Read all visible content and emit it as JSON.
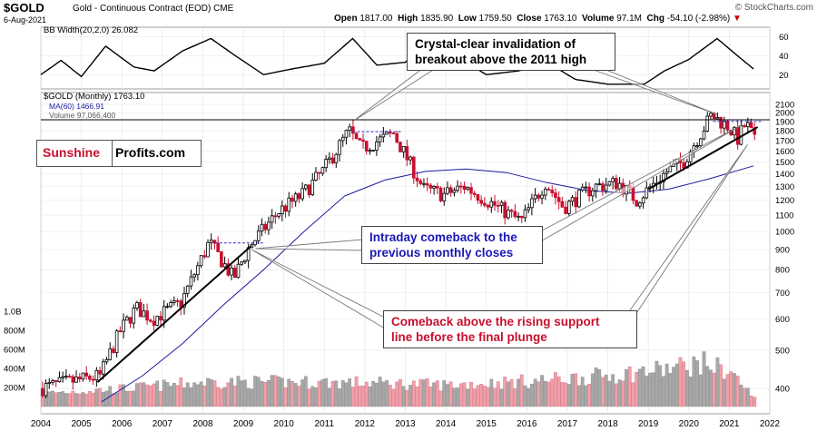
{
  "header": {
    "ticker": "$GOLD",
    "name": "Gold - Continuous Contract (EOD)",
    "exchange": "CME",
    "date": "6-Aug-2021",
    "open_label": "Open",
    "open": "1817.00",
    "high_label": "High",
    "high": "1835.90",
    "low_label": "Low",
    "low": "1759.50",
    "close_label": "Close",
    "close": "1763.10",
    "volume_label": "Volume",
    "volume": "97.1M",
    "chg_label": "Chg",
    "chg": "-54.10 (-2.98%)",
    "chg_arrow": "▼",
    "brand": "© StockCharts.com"
  },
  "panels": {
    "bbw_label": "BB Width(20,2.0) 26.082",
    "price_label": "$GOLD (Monthly) 1763.10",
    "ma_label": "MA(60) 1466.91",
    "volume_label": "Volume 97,066,400"
  },
  "watermark": {
    "part1": "Sunshine",
    "part2": "Profits.com"
  },
  "annotations": {
    "breakout_line1": "Crystal-clear invalidation of",
    "breakout_line2": "breakout above the 2011 high",
    "intraday_line1": "Intraday comeback to the",
    "intraday_line2": "previous monthly closes",
    "support_line1": "Comeback above the rising support",
    "support_line2": "line before the final plunge"
  },
  "colors": {
    "up": "#000000",
    "down": "#c8102e",
    "ma": "#1a1aa0",
    "callout_blue": "#1a1ab4",
    "callout_red": "#c8102e",
    "brand_red": "#c8102e",
    "volume_up": "#a8a8a8",
    "volume_down": "#f0a0a8"
  },
  "chart_data": {
    "type": "candlestick",
    "scale": "log",
    "x_ticks": [
      "2004",
      "2005",
      "2006",
      "2007",
      "2008",
      "2009",
      "2010",
      "2011",
      "2012",
      "2013",
      "2014",
      "2015",
      "2016",
      "2017",
      "2018",
      "2019",
      "2020",
      "2021",
      "2022"
    ],
    "price_ticks": [
      400,
      500,
      600,
      700,
      800,
      900,
      1000,
      1100,
      1200,
      1300,
      1400,
      1500,
      1600,
      1700,
      1800,
      1900,
      2000,
      2100
    ],
    "bbw_ticks": [
      20,
      40,
      60
    ],
    "volume_ticks": [
      "200M",
      "400M",
      "600M",
      "800M",
      "1.0B"
    ],
    "price_anchors": [
      {
        "x": 2004.0,
        "y": 400
      },
      {
        "x": 2004.7,
        "y": 415
      },
      {
        "x": 2005.5,
        "y": 430
      },
      {
        "x": 2006.0,
        "y": 560
      },
      {
        "x": 2006.4,
        "y": 640
      },
      {
        "x": 2006.8,
        "y": 600
      },
      {
        "x": 2007.5,
        "y": 660
      },
      {
        "x": 2008.2,
        "y": 940
      },
      {
        "x": 2008.8,
        "y": 760
      },
      {
        "x": 2009.2,
        "y": 920
      },
      {
        "x": 2009.9,
        "y": 1120
      },
      {
        "x": 2010.5,
        "y": 1240
      },
      {
        "x": 2011.0,
        "y": 1420
      },
      {
        "x": 2011.65,
        "y": 1800
      },
      {
        "x": 2011.95,
        "y": 1620
      },
      {
        "x": 2012.75,
        "y": 1770
      },
      {
        "x": 2013.5,
        "y": 1280
      },
      {
        "x": 2014.0,
        "y": 1240
      },
      {
        "x": 2014.5,
        "y": 1300
      },
      {
        "x": 2015.9,
        "y": 1060
      },
      {
        "x": 2016.5,
        "y": 1330
      },
      {
        "x": 2016.95,
        "y": 1150
      },
      {
        "x": 2017.7,
        "y": 1300
      },
      {
        "x": 2018.3,
        "y": 1330
      },
      {
        "x": 2018.75,
        "y": 1200
      },
      {
        "x": 2019.5,
        "y": 1420
      },
      {
        "x": 2019.9,
        "y": 1500
      },
      {
        "x": 2020.6,
        "y": 1970
      },
      {
        "x": 2021.0,
        "y": 1850
      },
      {
        "x": 2021.25,
        "y": 1720
      },
      {
        "x": 2021.45,
        "y": 1880
      },
      {
        "x": 2021.6,
        "y": 1763
      }
    ],
    "ma60": [
      {
        "x": 2005.5,
        "y": 370
      },
      {
        "x": 2006.5,
        "y": 430
      },
      {
        "x": 2007.5,
        "y": 520
      },
      {
        "x": 2008.5,
        "y": 650
      },
      {
        "x": 2009.5,
        "y": 800
      },
      {
        "x": 2010.5,
        "y": 1000
      },
      {
        "x": 2011.5,
        "y": 1230
      },
      {
        "x": 2012.5,
        "y": 1350
      },
      {
        "x": 2013.5,
        "y": 1420
      },
      {
        "x": 2014.5,
        "y": 1440
      },
      {
        "x": 2015.5,
        "y": 1410
      },
      {
        "x": 2016.5,
        "y": 1330
      },
      {
        "x": 2017.5,
        "y": 1270
      },
      {
        "x": 2018.5,
        "y": 1250
      },
      {
        "x": 2019.5,
        "y": 1280
      },
      {
        "x": 2020.5,
        "y": 1360
      },
      {
        "x": 2021.6,
        "y": 1467
      }
    ],
    "bbw_anchors": [
      {
        "x": 2004.0,
        "y": 20
      },
      {
        "x": 2004.5,
        "y": 35
      },
      {
        "x": 2005.0,
        "y": 18
      },
      {
        "x": 2005.6,
        "y": 50
      },
      {
        "x": 2006.3,
        "y": 28
      },
      {
        "x": 2006.8,
        "y": 24
      },
      {
        "x": 2007.5,
        "y": 45
      },
      {
        "x": 2008.2,
        "y": 58
      },
      {
        "x": 2008.8,
        "y": 40
      },
      {
        "x": 2009.5,
        "y": 20
      },
      {
        "x": 2010.2,
        "y": 26
      },
      {
        "x": 2011.0,
        "y": 32
      },
      {
        "x": 2011.7,
        "y": 58
      },
      {
        "x": 2012.3,
        "y": 30
      },
      {
        "x": 2013.0,
        "y": 33
      },
      {
        "x": 2013.6,
        "y": 55
      },
      {
        "x": 2014.3,
        "y": 38
      },
      {
        "x": 2015.0,
        "y": 20
      },
      {
        "x": 2015.8,
        "y": 24
      },
      {
        "x": 2016.5,
        "y": 33
      },
      {
        "x": 2017.2,
        "y": 15
      },
      {
        "x": 2018.0,
        "y": 10
      },
      {
        "x": 2018.9,
        "y": 10
      },
      {
        "x": 2019.4,
        "y": 24
      },
      {
        "x": 2020.0,
        "y": 36
      },
      {
        "x": 2020.7,
        "y": 58
      },
      {
        "x": 2021.2,
        "y": 40
      },
      {
        "x": 2021.6,
        "y": 26
      }
    ],
    "volume_envelope_M": [
      {
        "x": 2004.0,
        "y": 180
      },
      {
        "x": 2006.0,
        "y": 240
      },
      {
        "x": 2008.0,
        "y": 330
      },
      {
        "x": 2010.0,
        "y": 330
      },
      {
        "x": 2012.0,
        "y": 320
      },
      {
        "x": 2014.0,
        "y": 290
      },
      {
        "x": 2016.0,
        "y": 340
      },
      {
        "x": 2018.0,
        "y": 420
      },
      {
        "x": 2019.5,
        "y": 510
      },
      {
        "x": 2020.3,
        "y": 590
      },
      {
        "x": 2021.0,
        "y": 470
      },
      {
        "x": 2021.6,
        "y": 97
      }
    ],
    "resistance_2011_high": 1920,
    "trendlines": [
      {
        "x1": 2005.4,
        "y1": 415,
        "x2": 2009.2,
        "y2": 920
      },
      {
        "x1": 2019.0,
        "y1": 1280,
        "x2": 2021.7,
        "y2": 1840
      }
    ]
  }
}
